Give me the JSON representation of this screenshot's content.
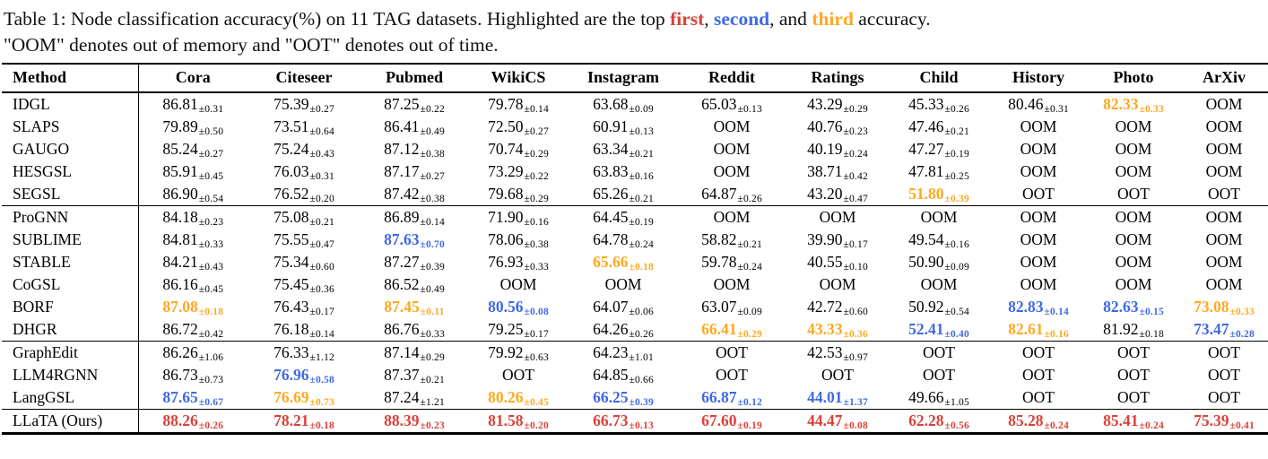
{
  "caption": {
    "line1_segments": [
      {
        "text": "Table 1: Node classification accuracy(%) on 11 TAG datasets. Highlighted are the top "
      },
      {
        "text": "first",
        "color": "first"
      },
      {
        "text": ", "
      },
      {
        "text": "second",
        "color": "second"
      },
      {
        "text": ", and "
      },
      {
        "text": "third",
        "color": "third"
      },
      {
        "text": " accuracy."
      }
    ],
    "line2": "\"OOM\" denotes out of memory and \"OOT\" denotes out of time."
  },
  "highlight_colors": {
    "first": "#d8423b",
    "second": "#4169e1",
    "third": "#ffa821"
  },
  "table": {
    "method_header": "Method",
    "columns": [
      "Cora",
      "Citeseer",
      "Pubmed",
      "WikiCS",
      "Instagram",
      "Reddit",
      "Ratings",
      "Child",
      "History",
      "Photo",
      "ArXiv"
    ],
    "groups": [
      {
        "rows": [
          {
            "method": "IDGL",
            "cells": [
              {
                "v": "86.81",
                "e": "0.31"
              },
              {
                "v": "75.39",
                "e": "0.27"
              },
              {
                "v": "87.25",
                "e": "0.22"
              },
              {
                "v": "79.78",
                "e": "0.14"
              },
              {
                "v": "63.68",
                "e": "0.09"
              },
              {
                "v": "65.03",
                "e": "0.13"
              },
              {
                "v": "43.29",
                "e": "0.29"
              },
              {
                "v": "45.33",
                "e": "0.26"
              },
              {
                "v": "80.46",
                "e": "0.31"
              },
              {
                "v": "82.33",
                "e": "0.33",
                "r": "third"
              },
              {
                "t": "OOM"
              }
            ]
          },
          {
            "method": "SLAPS",
            "cells": [
              {
                "v": "79.89",
                "e": "0.50"
              },
              {
                "v": "73.51",
                "e": "0.64"
              },
              {
                "v": "86.41",
                "e": "0.49"
              },
              {
                "v": "72.50",
                "e": "0.27"
              },
              {
                "v": "60.91",
                "e": "0.13"
              },
              {
                "t": "OOM"
              },
              {
                "v": "40.76",
                "e": "0.23"
              },
              {
                "v": "47.46",
                "e": "0.21"
              },
              {
                "t": "OOM"
              },
              {
                "t": "OOM"
              },
              {
                "t": "OOM"
              }
            ]
          },
          {
            "method": "GAUGO",
            "cells": [
              {
                "v": "85.24",
                "e": "0.27"
              },
              {
                "v": "75.24",
                "e": "0.43"
              },
              {
                "v": "87.12",
                "e": "0.38"
              },
              {
                "v": "70.74",
                "e": "0.29"
              },
              {
                "v": "63.34",
                "e": "0.21"
              },
              {
                "t": "OOM"
              },
              {
                "v": "40.19",
                "e": "0.24"
              },
              {
                "v": "47.27",
                "e": "0.19"
              },
              {
                "t": "OOM"
              },
              {
                "t": "OOM"
              },
              {
                "t": "OOM"
              }
            ]
          },
          {
            "method": "HESGSL",
            "cells": [
              {
                "v": "85.91",
                "e": "0.45"
              },
              {
                "v": "76.03",
                "e": "0.31"
              },
              {
                "v": "87.17",
                "e": "0.27"
              },
              {
                "v": "73.29",
                "e": "0.22"
              },
              {
                "v": "63.83",
                "e": "0.16"
              },
              {
                "t": "OOM"
              },
              {
                "v": "38.71",
                "e": "0.42"
              },
              {
                "v": "47.81",
                "e": "0.25"
              },
              {
                "t": "OOM"
              },
              {
                "t": "OOM"
              },
              {
                "t": "OOM"
              }
            ]
          },
          {
            "method": "SEGSL",
            "cells": [
              {
                "v": "86.90",
                "e": "0.54"
              },
              {
                "v": "76.52",
                "e": "0.20"
              },
              {
                "v": "87.42",
                "e": "0.38"
              },
              {
                "v": "79.68",
                "e": "0.29"
              },
              {
                "v": "65.26",
                "e": "0.21"
              },
              {
                "v": "64.87",
                "e": "0.26"
              },
              {
                "v": "43.20",
                "e": "0.47"
              },
              {
                "v": "51.80",
                "e": "0.39",
                "r": "third"
              },
              {
                "t": "OOT"
              },
              {
                "t": "OOT"
              },
              {
                "t": "OOT"
              }
            ]
          }
        ]
      },
      {
        "rows": [
          {
            "method": "ProGNN",
            "cells": [
              {
                "v": "84.18",
                "e": "0.23"
              },
              {
                "v": "75.08",
                "e": "0.21"
              },
              {
                "v": "86.89",
                "e": "0.14"
              },
              {
                "v": "71.90",
                "e": "0.16"
              },
              {
                "v": "64.45",
                "e": "0.19"
              },
              {
                "t": "OOM"
              },
              {
                "t": "OOM"
              },
              {
                "t": "OOM"
              },
              {
                "t": "OOM"
              },
              {
                "t": "OOM"
              },
              {
                "t": "OOM"
              }
            ]
          },
          {
            "method": "SUBLIME",
            "cells": [
              {
                "v": "84.81",
                "e": "0.33"
              },
              {
                "v": "75.55",
                "e": "0.47"
              },
              {
                "v": "87.63",
                "e": "0.70",
                "r": "second"
              },
              {
                "v": "78.06",
                "e": "0.38"
              },
              {
                "v": "64.78",
                "e": "0.24"
              },
              {
                "v": "58.82",
                "e": "0.21"
              },
              {
                "v": "39.90",
                "e": "0.17"
              },
              {
                "v": "49.54",
                "e": "0.16"
              },
              {
                "t": "OOM"
              },
              {
                "t": "OOM"
              },
              {
                "t": "OOM"
              }
            ]
          },
          {
            "method": "STABLE",
            "cells": [
              {
                "v": "84.21",
                "e": "0.43"
              },
              {
                "v": "75.34",
                "e": "0.60"
              },
              {
                "v": "87.27",
                "e": "0.39"
              },
              {
                "v": "76.93",
                "e": "0.33"
              },
              {
                "v": "65.66",
                "e": "0.18",
                "r": "third"
              },
              {
                "v": "59.78",
                "e": "0.24"
              },
              {
                "v": "40.55",
                "e": "0.10"
              },
              {
                "v": "50.90",
                "e": "0.09"
              },
              {
                "t": "OOM"
              },
              {
                "t": "OOM"
              },
              {
                "t": "OOM"
              }
            ]
          },
          {
            "method": "CoGSL",
            "cells": [
              {
                "v": "86.16",
                "e": "0.45"
              },
              {
                "v": "75.45",
                "e": "0.36"
              },
              {
                "v": "86.52",
                "e": "0.49"
              },
              {
                "t": "OOM"
              },
              {
                "t": "OOM"
              },
              {
                "t": "OOM"
              },
              {
                "t": "OOM"
              },
              {
                "t": "OOM"
              },
              {
                "t": "OOM"
              },
              {
                "t": "OOM"
              },
              {
                "t": "OOM"
              }
            ]
          },
          {
            "method": "BORF",
            "cells": [
              {
                "v": "87.08",
                "e": "0.18",
                "r": "third"
              },
              {
                "v": "76.43",
                "e": "0.17"
              },
              {
                "v": "87.45",
                "e": "0.11",
                "r": "third"
              },
              {
                "v": "80.56",
                "e": "0.08",
                "r": "second"
              },
              {
                "v": "64.07",
                "e": "0.06"
              },
              {
                "v": "63.07",
                "e": "0.09"
              },
              {
                "v": "42.72",
                "e": "0.60"
              },
              {
                "v": "50.92",
                "e": "0.54"
              },
              {
                "v": "82.83",
                "e": "0.14",
                "r": "second"
              },
              {
                "v": "82.63",
                "e": "0.15",
                "r": "second"
              },
              {
                "v": "73.08",
                "e": "0.33",
                "r": "third"
              }
            ]
          },
          {
            "method": "DHGR",
            "cells": [
              {
                "v": "86.72",
                "e": "0.42"
              },
              {
                "v": "76.18",
                "e": "0.14"
              },
              {
                "v": "86.76",
                "e": "0.33"
              },
              {
                "v": "79.25",
                "e": "0.17"
              },
              {
                "v": "64.26",
                "e": "0.26"
              },
              {
                "v": "66.41",
                "e": "0.29",
                "r": "third"
              },
              {
                "v": "43.33",
                "e": "0.36",
                "r": "third"
              },
              {
                "v": "52.41",
                "e": "0.40",
                "r": "second"
              },
              {
                "v": "82.61",
                "e": "0.16",
                "r": "third"
              },
              {
                "v": "81.92",
                "e": "0.18"
              },
              {
                "v": "73.47",
                "e": "0.28",
                "r": "second"
              }
            ]
          }
        ]
      },
      {
        "rows": [
          {
            "method": "GraphEdit",
            "cells": [
              {
                "v": "86.26",
                "e": "1.06"
              },
              {
                "v": "76.33",
                "e": "1.12"
              },
              {
                "v": "87.14",
                "e": "0.29"
              },
              {
                "v": "79.92",
                "e": "0.63"
              },
              {
                "v": "64.23",
                "e": "1.01"
              },
              {
                "t": "OOT"
              },
              {
                "v": "42.53",
                "e": "0.97"
              },
              {
                "t": "OOT"
              },
              {
                "t": "OOT"
              },
              {
                "t": "OOT"
              },
              {
                "t": "OOT"
              }
            ]
          },
          {
            "method": "LLM4RGNN",
            "cells": [
              {
                "v": "86.73",
                "e": "0.73"
              },
              {
                "v": "76.96",
                "e": "0.58",
                "r": "second"
              },
              {
                "v": "87.37",
                "e": "0.21"
              },
              {
                "t": "OOT"
              },
              {
                "v": "64.85",
                "e": "0.66"
              },
              {
                "t": "OOT"
              },
              {
                "t": "OOT"
              },
              {
                "t": "OOT"
              },
              {
                "t": "OOT"
              },
              {
                "t": "OOT"
              },
              {
                "t": "OOT"
              }
            ]
          },
          {
            "method": "LangGSL",
            "cells": [
              {
                "v": "87.65",
                "e": "0.67",
                "r": "second"
              },
              {
                "v": "76.69",
                "e": "0.73",
                "r": "third"
              },
              {
                "v": "87.24",
                "e": "1.21"
              },
              {
                "v": "80.26",
                "e": "0.45",
                "r": "third"
              },
              {
                "v": "66.25",
                "e": "0.39",
                "r": "second"
              },
              {
                "v": "66.87",
                "e": "0.12",
                "r": "second"
              },
              {
                "v": "44.01",
                "e": "1.37",
                "r": "second"
              },
              {
                "v": "49.66",
                "e": "1.05"
              },
              {
                "t": "OOT"
              },
              {
                "t": "OOT"
              },
              {
                "t": "OOT"
              }
            ]
          }
        ]
      },
      {
        "rows": [
          {
            "method": "LLaTA (Ours)",
            "cells": [
              {
                "v": "88.26",
                "e": "0.26",
                "r": "first"
              },
              {
                "v": "78.21",
                "e": "0.18",
                "r": "first"
              },
              {
                "v": "88.39",
                "e": "0.23",
                "r": "first"
              },
              {
                "v": "81.58",
                "e": "0.20",
                "r": "first"
              },
              {
                "v": "66.73",
                "e": "0.13",
                "r": "first"
              },
              {
                "v": "67.60",
                "e": "0.19",
                "r": "first"
              },
              {
                "v": "44.47",
                "e": "0.08",
                "r": "first"
              },
              {
                "v": "62.28",
                "e": "0.56",
                "r": "first"
              },
              {
                "v": "85.28",
                "e": "0.24",
                "r": "first"
              },
              {
                "v": "85.41",
                "e": "0.24",
                "r": "first"
              },
              {
                "v": "75.39",
                "e": "0.41",
                "r": "first"
              }
            ]
          }
        ]
      }
    ]
  }
}
